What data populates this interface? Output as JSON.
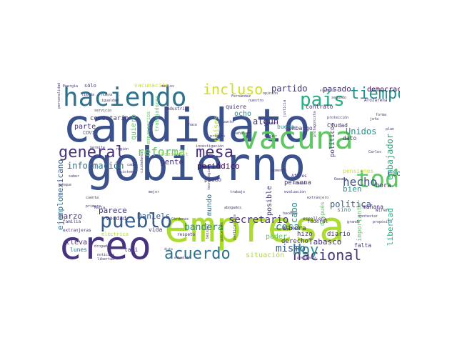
{
  "palette": {
    "dark_purple": "#46327e",
    "indigo": "#3b518b",
    "blue": "#365c8d",
    "slate_blue": "#2c728e",
    "teal": "#21918c",
    "green_teal": "#28ae80",
    "green": "#5ec962",
    "lime": "#addc30",
    "yellow_green": "#d0e11c",
    "deep_purple": "#440154"
  },
  "words": [
    {
      "text": "candidato",
      "color": "#3b518b"
    },
    {
      "text": "gobierno",
      "color": "#3b518b"
    },
    {
      "text": "empresa",
      "color": "#addc30"
    },
    {
      "text": "creo",
      "color": "#46327e"
    },
    {
      "text": "vacuna",
      "color": "#5ec962"
    },
    {
      "text": "haciendo",
      "color": "#2c728e"
    },
    {
      "text": "pueblo",
      "color": "#365c8d"
    },
    {
      "text": "general",
      "color": "#46327e"
    },
    {
      "text": "mesa",
      "color": "#46327e"
    },
    {
      "text": "toda",
      "color": "#5ec962"
    },
    {
      "text": "país",
      "color": "#28ae80"
    },
    {
      "text": "tiempo",
      "color": "#21918c"
    },
    {
      "text": "acuerdo",
      "color": "#2c728e"
    },
    {
      "text": "nacional",
      "color": "#46327e"
    },
    {
      "text": "Hoy",
      "color": "#21918c"
    },
    {
      "text": "incluso",
      "color": "#d0e11c"
    },
    {
      "text": "reforma",
      "color": "#5ec962"
    },
    {
      "text": "hecho",
      "color": "#3b518b"
    },
    {
      "text": "mismo",
      "color": "#365c8d"
    },
    {
      "text": "secretario",
      "color": "#46327e"
    },
    {
      "text": "información",
      "color": "#2c728e"
    },
    {
      "text": "bandera",
      "color": "#21918c"
    },
    {
      "text": "partido",
      "color": "#46327e"
    },
    {
      "text": "pasado",
      "color": "#46327e"
    },
    {
      "text": "democracia",
      "color": "#440154"
    },
    {
      "text": "embajador",
      "color": "#28ae80"
    },
    {
      "text": "Unidos",
      "color": "#21918c"
    },
    {
      "text": "cosa",
      "color": "#2c728e"
    },
    {
      "text": "cabo",
      "color": "#21918c"
    },
    {
      "text": "algún",
      "color": "#46327e"
    },
    {
      "text": "periódico",
      "color": "#440154"
    },
    {
      "text": "gente",
      "color": "#46327e"
    },
    {
      "text": "parece",
      "color": "#46327e"
    },
    {
      "text": "Daniels",
      "color": "#365c8d"
    },
    {
      "text": "marzo",
      "color": "#46327e"
    },
    {
      "text": "parte",
      "color": "#46327e"
    },
    {
      "text": "mexicano",
      "color": "#365c8d"
    },
    {
      "text": "ejemplo",
      "color": "#2c728e"
    },
    {
      "text": "bien",
      "color": "#21918c"
    },
    {
      "text": "río",
      "color": "#2c728e"
    },
    {
      "text": "hora",
      "color": "#46327e"
    },
    {
      "text": "libertad",
      "color": "#28ae80"
    },
    {
      "text": "política",
      "color": "#365c8d"
    },
    {
      "text": "Tabasco",
      "color": "#46327e"
    },
    {
      "text": "situación",
      "color": "#addc30"
    },
    {
      "text": "poder",
      "color": "#5ec962"
    },
    {
      "text": "posible",
      "color": "#46327e"
    },
    {
      "text": "mundo",
      "color": "#2c728e"
    },
    {
      "text": "quiero",
      "color": "#5ec962"
    },
    {
      "text": "comentario",
      "color": "#46327e"
    },
    {
      "text": "vacunación",
      "color": "#d0e11c"
    },
    {
      "text": "sólo",
      "color": "#46327e"
    },
    {
      "text": "ocho",
      "color": "#21918c"
    },
    {
      "text": "países",
      "color": "#addc30"
    },
    {
      "text": "quiere",
      "color": "#46327e"
    },
    {
      "text": "políticos",
      "color": "#46327e"
    },
    {
      "text": "pensiones",
      "color": "#d0e11c"
    },
    {
      "text": "verdad",
      "color": "#46327e"
    },
    {
      "text": "taxi",
      "color": "#46327e"
    },
    {
      "text": "vida",
      "color": "#46327e"
    },
    {
      "text": "lleva",
      "color": "#46327e"
    },
    {
      "text": "lunes",
      "color": "#2c728e"
    },
    {
      "text": "hizo",
      "color": "#46327e"
    },
    {
      "text": "derecho",
      "color": "#46327e"
    },
    {
      "text": "diario",
      "color": "#46327e"
    },
    {
      "text": "manera",
      "color": "#46327e"
    },
    {
      "text": "falta",
      "color": "#46327e"
    },
    {
      "text": "importante",
      "color": "#5ec962"
    },
    {
      "text": "mañana",
      "color": "#46327e"
    },
    {
      "text": "contrato",
      "color": "#46327e"
    },
    {
      "text": "embargo",
      "color": "#46327e"
    },
    {
      "text": "Ciudad",
      "color": "#46327e"
    },
    {
      "text": "buena",
      "color": "#21918c"
    },
    {
      "text": "dato",
      "color": "#46327e"
    },
    {
      "text": "sino",
      "color": "#21918c"
    },
    {
      "text": "después",
      "color": "#5ec962"
    },
    {
      "text": "persona",
      "color": "#46327e"
    },
    {
      "text": "puedo",
      "color": "#46327e"
    },
    {
      "text": "Roosevelt",
      "color": "#addc30"
    },
    {
      "text": "COVID",
      "color": "#365c8d"
    },
    {
      "text": "trabajadores",
      "color": "#5ec962"
    },
    {
      "text": "empresarios",
      "color": "#5ec962"
    },
    {
      "text": "federal",
      "color": "#46327e"
    },
    {
      "text": "eléctrica",
      "color": "#addc30"
    },
    {
      "text": "respeto",
      "color": "#46327e"
    },
    {
      "text": "extranjeras",
      "color": "#46327e"
    },
    {
      "text": "familia",
      "color": "#46327e"
    },
    {
      "text": "propósito",
      "color": "#46327e"
    },
    {
      "text": "Wiren",
      "color": "#46327e"
    },
    {
      "text": "escollera",
      "color": "#46327e"
    },
    {
      "text": "extranjero",
      "color": "#46327e"
    },
    {
      "text": "Afores",
      "color": "#46327e"
    },
    {
      "text": "momento",
      "color": "#46327e"
    },
    {
      "text": "evaluación",
      "color": "#46327e"
    },
    {
      "text": "trabajo",
      "color": "#46327e"
    },
    {
      "text": "abogados",
      "color": "#46327e"
    },
    {
      "text": "tecnología",
      "color": "#46327e"
    },
    {
      "text": "investigación",
      "color": "#46327e"
    },
    {
      "text": "región",
      "color": "#46327e"
    },
    {
      "text": "permite",
      "color": "#46327e"
    },
    {
      "text": "industria",
      "color": "#46327e"
    },
    {
      "text": "medios",
      "color": "#46327e"
    },
    {
      "text": "tienda",
      "color": "#46327e"
    },
    {
      "text": "Energía",
      "color": "#46327e"
    },
    {
      "text": "nueva",
      "color": "#46327e"
    },
    {
      "text": "igualdad",
      "color": "#46327e"
    },
    {
      "text": "servicio",
      "color": "#46327e"
    },
    {
      "text": "nuestro",
      "color": "#46327e"
    },
    {
      "text": "seguir",
      "color": "#46327e"
    },
    {
      "text": "primero",
      "color": "#46327e"
    },
    {
      "text": "hace",
      "color": "#46327e"
    },
    {
      "text": "buscar",
      "color": "#46327e"
    },
    {
      "text": "señalado",
      "color": "#46327e"
    },
    {
      "text": "Fernández",
      "color": "#46327e"
    },
    {
      "text": "opinión",
      "color": "#46327e"
    },
    {
      "text": "electoral",
      "color": "#46327e"
    },
    {
      "text": "segundo",
      "color": "#46327e"
    },
    {
      "text": "protección",
      "color": "#46327e"
    },
    {
      "text": "jefa",
      "color": "#46327e"
    },
    {
      "text": "forma",
      "color": "#46327e"
    },
    {
      "text": "plan",
      "color": "#46327e"
    },
    {
      "text": "Arozarena",
      "color": "#46327e"
    },
    {
      "text": "protagonista",
      "color": "#46327e"
    },
    {
      "text": "Carlos",
      "color": "#46327e"
    },
    {
      "text": "Oaxaca",
      "color": "#46327e"
    },
    {
      "text": "contestar",
      "color": "#46327e"
    },
    {
      "text": "grande",
      "color": "#46327e"
    },
    {
      "text": "hacemos",
      "color": "#46327e"
    },
    {
      "text": "presidencia",
      "color": "#46327e"
    },
    {
      "text": "entendido",
      "color": "#46327e"
    },
    {
      "text": "noticias",
      "color": "#46327e"
    },
    {
      "text": "libertad",
      "color": "#46327e"
    },
    {
      "text": "drogado",
      "color": "#46327e"
    },
    {
      "text": "dicho",
      "color": "#46327e"
    },
    {
      "text": "María",
      "color": "#46327e"
    },
    {
      "text": "cuenta",
      "color": "#46327e"
    },
    {
      "text": "primera",
      "color": "#46327e"
    },
    {
      "text": "saber",
      "color": "#46327e"
    },
    {
      "text": "aunque",
      "color": "#46327e"
    },
    {
      "text": "Cárdenas",
      "color": "#46327e"
    },
    {
      "text": "mejor",
      "color": "#46327e"
    },
    {
      "text": "béisbol",
      "color": "#46327e"
    },
    {
      "text": "gobiernos",
      "color": "#46327e"
    },
    {
      "text": "particulares",
      "color": "#46327e"
    },
    {
      "text": "justicia",
      "color": "#46327e"
    },
    {
      "text": "semana",
      "color": "#46327e"
    },
    {
      "text": "punto",
      "color": "#46327e"
    },
    {
      "text": "sistema",
      "color": "#46327e"
    },
    {
      "text": "personalidad",
      "color": "#46327e"
    },
    {
      "text": "cada",
      "color": "#46327e"
    },
    {
      "text": "ciudadanos",
      "color": "#46327e"
    },
    {
      "text": "Marina",
      "color": "#46327e"
    }
  ]
}
